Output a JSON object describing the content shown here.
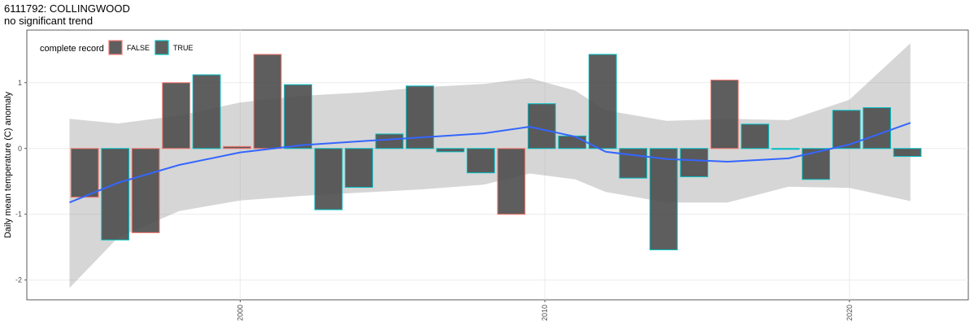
{
  "title": "6111792: COLLINGWOOD",
  "subtitle": "no significant trend",
  "chart_data": {
    "type": "bar",
    "ylabel": "Daily mean temperature (C) anomaly",
    "xlabel": "",
    "xlim": [
      1993.0,
      2023.9
    ],
    "ylim": [
      -2.3,
      1.8
    ],
    "x_ticks": [
      2000,
      2010,
      2020
    ],
    "y_ticks": [
      -2,
      -1,
      0,
      1
    ],
    "grid": true,
    "legend": {
      "title": "complete record",
      "position": "top-left",
      "entries": [
        {
          "label": "FALSE",
          "color": "#F8766D"
        },
        {
          "label": "TRUE",
          "color": "#00BFC4"
        }
      ]
    },
    "bars": [
      {
        "x": 1994.9,
        "value": -0.74,
        "complete": "FALSE"
      },
      {
        "x": 1995.9,
        "value": -1.39,
        "complete": "TRUE"
      },
      {
        "x": 1996.9,
        "value": -1.28,
        "complete": "FALSE"
      },
      {
        "x": 1997.9,
        "value": 1.0,
        "complete": "FALSE"
      },
      {
        "x": 1998.9,
        "value": 1.12,
        "complete": "TRUE"
      },
      {
        "x": 1999.9,
        "value": 0.03,
        "complete": "FALSE"
      },
      {
        "x": 2000.9,
        "value": 1.43,
        "complete": "FALSE"
      },
      {
        "x": 2001.9,
        "value": 0.97,
        "complete": "TRUE"
      },
      {
        "x": 2002.9,
        "value": -0.93,
        "complete": "TRUE"
      },
      {
        "x": 2003.9,
        "value": -0.59,
        "complete": "TRUE"
      },
      {
        "x": 2004.9,
        "value": 0.22,
        "complete": "TRUE"
      },
      {
        "x": 2005.9,
        "value": 0.95,
        "complete": "TRUE"
      },
      {
        "x": 2006.9,
        "value": -0.05,
        "complete": "TRUE"
      },
      {
        "x": 2007.9,
        "value": -0.37,
        "complete": "TRUE"
      },
      {
        "x": 2008.9,
        "value": -1.0,
        "complete": "FALSE"
      },
      {
        "x": 2009.9,
        "value": 0.68,
        "complete": "TRUE"
      },
      {
        "x": 2010.9,
        "value": 0.19,
        "complete": "TRUE"
      },
      {
        "x": 2011.9,
        "value": 1.43,
        "complete": "TRUE"
      },
      {
        "x": 2012.9,
        "value": -0.45,
        "complete": "TRUE"
      },
      {
        "x": 2013.9,
        "value": -1.54,
        "complete": "TRUE"
      },
      {
        "x": 2014.9,
        "value": -0.43,
        "complete": "TRUE"
      },
      {
        "x": 2015.9,
        "value": 1.04,
        "complete": "FALSE"
      },
      {
        "x": 2016.9,
        "value": 0.37,
        "complete": "TRUE"
      },
      {
        "x": 2017.9,
        "value": 0.0,
        "complete": "TRUE"
      },
      {
        "x": 2018.9,
        "value": -0.47,
        "complete": "TRUE"
      },
      {
        "x": 2019.9,
        "value": 0.58,
        "complete": "TRUE"
      },
      {
        "x": 2020.9,
        "value": 0.62,
        "complete": "TRUE"
      },
      {
        "x": 2021.9,
        "value": -0.12,
        "complete": "TRUE"
      }
    ],
    "smooth": {
      "color": "#3366FF",
      "x": [
        1994.4,
        1996.0,
        1998.0,
        2000.0,
        2002.0,
        2004.0,
        2006.0,
        2008.0,
        2009.5,
        2011.0,
        2012.0,
        2014.0,
        2016.0,
        2018.0,
        2020.0,
        2022.0
      ],
      "y": [
        -0.82,
        -0.52,
        -0.25,
        -0.06,
        0.05,
        0.11,
        0.17,
        0.23,
        0.33,
        0.18,
        -0.05,
        -0.16,
        -0.2,
        -0.15,
        0.06,
        0.39
      ],
      "lower": [
        -2.12,
        -1.35,
        -0.95,
        -0.79,
        -0.72,
        -0.67,
        -0.62,
        -0.55,
        -0.38,
        -0.47,
        -0.66,
        -0.82,
        -0.82,
        -0.58,
        -0.6,
        -0.8
      ],
      "upper": [
        0.45,
        0.38,
        0.5,
        0.7,
        0.8,
        0.85,
        0.93,
        0.98,
        1.07,
        0.88,
        0.58,
        0.42,
        0.45,
        0.43,
        0.74,
        1.6
      ]
    }
  }
}
